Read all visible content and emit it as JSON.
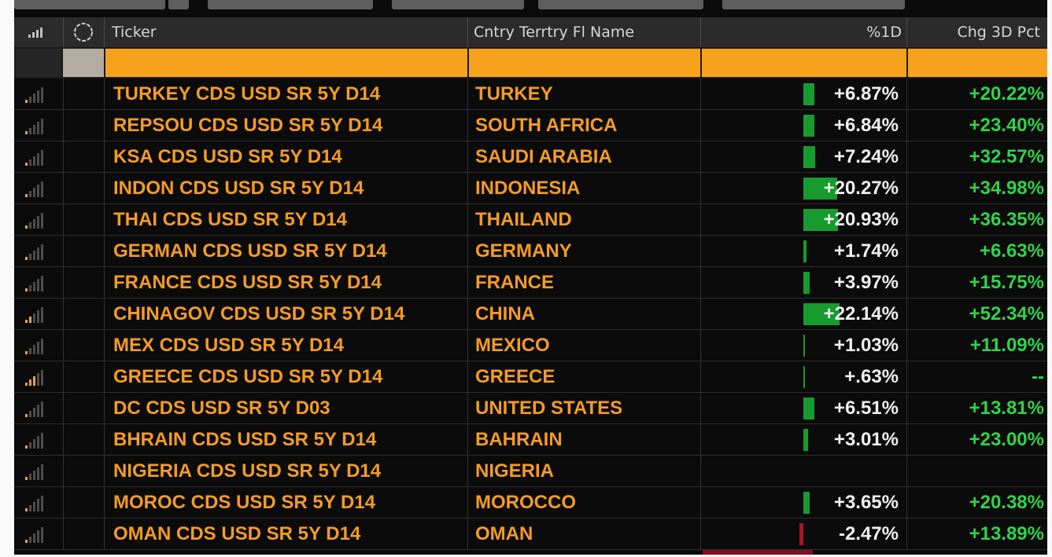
{
  "columns": {
    "ticker": "Ticker",
    "country": "Cntry Terrtry Fl Name",
    "pct_1d": "%1D",
    "chg_3d": "Chg 3D Pct"
  },
  "header_icons": [
    "signal-bars-icon",
    "circle-loading-icon"
  ],
  "colors": {
    "ticker_text": "#f49b26",
    "filter_row": "#f7a21c",
    "positive": "#2fd34a",
    "positive_bar": "#179b2f",
    "negative_bar": "#b01226"
  },
  "rows": [
    {
      "ticker": "TURKEY CDS USD SR 5Y D14",
      "country": "TURKEY",
      "pct_1d": "+6.87%",
      "pct_1d_value": 6.87,
      "chg_3d": "+20.22%",
      "signal": 1
    },
    {
      "ticker": "REPSOU CDS USD SR 5Y D14",
      "country": "SOUTH AFRICA",
      "pct_1d": "+6.84%",
      "pct_1d_value": 6.84,
      "chg_3d": "+23.40%",
      "signal": 1
    },
    {
      "ticker": "KSA CDS USD SR 5Y D14",
      "country": "SAUDI ARABIA",
      "pct_1d": "+7.24%",
      "pct_1d_value": 7.24,
      "chg_3d": "+32.57%",
      "signal": 1
    },
    {
      "ticker": "INDON CDS USD SR 5Y D14",
      "country": "INDONESIA",
      "pct_1d": "+20.27%",
      "pct_1d_value": 20.27,
      "chg_3d": "+34.98%",
      "signal": 1
    },
    {
      "ticker": "THAI CDS USD SR 5Y D14",
      "country": "THAILAND",
      "pct_1d": "+20.93%",
      "pct_1d_value": 20.93,
      "chg_3d": "+36.35%",
      "signal": 1
    },
    {
      "ticker": "GERMAN CDS USD SR 5Y D14",
      "country": "GERMANY",
      "pct_1d": "+1.74%",
      "pct_1d_value": 1.74,
      "chg_3d": "+6.63%",
      "signal": 1
    },
    {
      "ticker": "FRANCE CDS USD SR 5Y D14",
      "country": "FRANCE",
      "pct_1d": "+3.97%",
      "pct_1d_value": 3.97,
      "chg_3d": "+15.75%",
      "signal": 1
    },
    {
      "ticker": "CHINAGOV CDS USD SR 5Y D14",
      "country": "CHINA",
      "pct_1d": "+22.14%",
      "pct_1d_value": 22.14,
      "chg_3d": "+52.34%",
      "signal": 2
    },
    {
      "ticker": "MEX CDS USD SR 5Y D14",
      "country": "MEXICO",
      "pct_1d": "+1.03%",
      "pct_1d_value": 1.03,
      "chg_3d": "+11.09%",
      "signal": 1
    },
    {
      "ticker": "GREECE CDS USD SR 5Y D14",
      "country": "GREECE",
      "pct_1d": "+.63%",
      "pct_1d_value": 0.63,
      "chg_3d": "--",
      "signal": 3
    },
    {
      "ticker": "DC CDS USD SR 5Y D03",
      "country": "UNITED STATES",
      "pct_1d": "+6.51%",
      "pct_1d_value": 6.51,
      "chg_3d": "+13.81%",
      "signal": 1
    },
    {
      "ticker": "BHRAIN CDS USD SR 5Y D14",
      "country": "BAHRAIN",
      "pct_1d": "+3.01%",
      "pct_1d_value": 3.01,
      "chg_3d": "+23.00%",
      "signal": 1
    },
    {
      "ticker": "NIGERIA CDS USD SR 5Y D14",
      "country": "NIGERIA",
      "pct_1d": "",
      "pct_1d_value": 0,
      "chg_3d": "",
      "signal": 1
    },
    {
      "ticker": "MOROC CDS USD SR 5Y D14",
      "country": "MOROCCO",
      "pct_1d": "+3.65%",
      "pct_1d_value": 3.65,
      "chg_3d": "+20.38%",
      "signal": 1
    },
    {
      "ticker": "OMAN CDS USD SR 5Y D14",
      "country": "OMAN",
      "pct_1d": "-2.47%",
      "pct_1d_value": -2.47,
      "chg_3d": "+13.89%",
      "signal": 1
    }
  ]
}
